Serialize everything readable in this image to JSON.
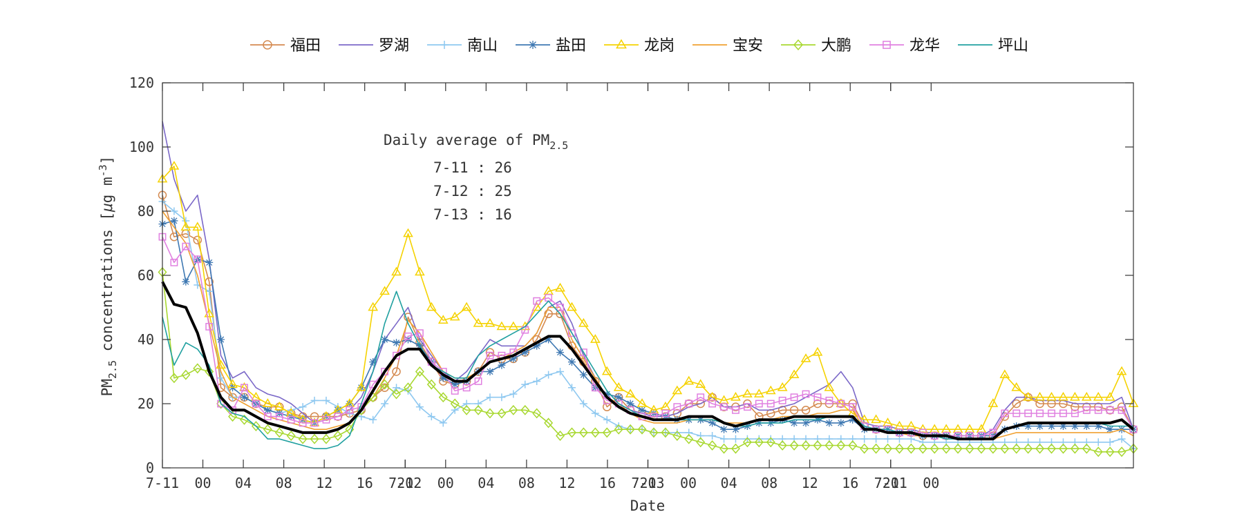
{
  "chart_data": {
    "type": "line",
    "x_tick_labels": [
      "7-11",
      "00",
      "04",
      "08",
      "12",
      "16",
      "20",
      "7-12",
      "00",
      "04",
      "08",
      "12",
      "16",
      "20",
      "7-13",
      "00",
      "04",
      "08",
      "12",
      "16",
      "20",
      "7-11",
      "00"
    ],
    "ylabel_main": "PM",
    "ylabel_sub": "2.5",
    "ylabel_tail": " concentrations [",
    "ylabel_mu": "μ",
    "ylabel_unit": "g m",
    "ylabel_exp": "-3",
    "ylabel_close": "]",
    "xlabel": "Date",
    "ylim": [
      0,
      120
    ],
    "y_ticks": [
      0,
      20,
      40,
      60,
      80,
      100,
      120
    ],
    "grid": false,
    "legend_position": "top",
    "annotation": {
      "title_prefix": "Daily average of PM",
      "title_sub": "2.5",
      "lines": [
        "7-11 : 26",
        "7-12 : 25",
        "7-13 : 16"
      ]
    },
    "series": [
      {
        "name": "福田",
        "color": "#D48A50",
        "marker": "circle",
        "values": [
          85,
          72,
          73,
          71,
          58,
          25,
          22,
          22,
          20,
          19,
          19,
          17,
          16,
          16,
          16,
          16,
          17,
          18,
          22,
          25,
          30,
          47,
          39,
          33,
          27,
          26,
          27,
          30,
          36,
          34,
          34,
          36,
          40,
          48,
          48,
          38,
          33,
          27,
          19,
          22,
          18,
          17,
          17,
          16,
          17,
          20,
          20,
          22,
          19,
          19,
          20,
          16,
          17,
          18,
          18,
          18,
          20,
          20,
          20,
          20,
          13,
          12,
          12,
          11,
          11,
          10,
          10,
          10,
          10,
          10,
          10,
          10,
          16,
          20,
          22,
          20,
          20,
          20,
          19,
          19,
          19,
          18,
          19,
          12
        ]
      },
      {
        "name": "罗湖",
        "color": "#7B68C8",
        "marker": "none",
        "values": [
          108,
          90,
          80,
          85,
          65,
          35,
          28,
          30,
          25,
          23,
          22,
          20,
          17,
          14,
          15,
          16,
          18,
          22,
          30,
          40,
          45,
          50,
          40,
          35,
          30,
          27,
          30,
          35,
          40,
          38,
          38,
          38,
          42,
          50,
          52,
          45,
          35,
          28,
          22,
          20,
          18,
          17,
          16,
          16,
          17,
          19,
          20,
          22,
          19,
          19,
          20,
          18,
          18,
          19,
          20,
          22,
          24,
          26,
          30,
          25,
          14,
          13,
          13,
          12,
          12,
          11,
          11,
          10,
          10,
          10,
          10,
          12,
          18,
          22,
          22,
          21,
          21,
          21,
          20,
          20,
          20,
          20,
          22,
          12
        ]
      },
      {
        "name": "南山",
        "color": "#8EC8F0",
        "marker": "plus",
        "values": [
          83,
          80,
          77,
          57,
          55,
          28,
          22,
          22,
          20,
          18,
          17,
          18,
          19,
          21,
          21,
          19,
          17,
          16,
          15,
          20,
          25,
          24,
          19,
          16,
          14,
          18,
          20,
          20,
          22,
          22,
          23,
          26,
          27,
          29,
          30,
          25,
          20,
          17,
          15,
          13,
          12,
          12,
          11,
          11,
          11,
          11,
          10,
          10,
          9,
          9,
          9,
          9,
          9,
          9,
          9,
          9,
          9,
          9,
          9,
          9,
          9,
          9,
          9,
          9,
          9,
          8,
          8,
          8,
          8,
          8,
          8,
          8,
          8,
          8,
          8,
          8,
          8,
          8,
          8,
          8,
          8,
          8,
          9,
          6
        ]
      },
      {
        "name": "盐田",
        "color": "#3E78B2",
        "marker": "asterisk",
        "values": [
          76,
          77,
          58,
          65,
          64,
          40,
          25,
          22,
          20,
          18,
          17,
          16,
          15,
          14,
          16,
          18,
          20,
          25,
          33,
          40,
          39,
          40,
          38,
          33,
          28,
          26,
          27,
          30,
          30,
          32,
          34,
          36,
          38,
          40,
          36,
          33,
          29,
          25,
          23,
          22,
          20,
          18,
          17,
          16,
          15,
          15,
          15,
          14,
          12,
          12,
          13,
          14,
          14,
          15,
          14,
          14,
          15,
          14,
          14,
          15,
          12,
          12,
          12,
          11,
          11,
          10,
          10,
          10,
          10,
          10,
          10,
          10,
          12,
          13,
          13,
          13,
          13,
          13,
          13,
          13,
          13,
          12,
          12,
          12
        ]
      },
      {
        "name": "龙岗",
        "color": "#F5D200",
        "marker": "triangle",
        "values": [
          90,
          94,
          75,
          75,
          48,
          32,
          26,
          25,
          22,
          20,
          19,
          17,
          15,
          14,
          16,
          18,
          20,
          25,
          50,
          55,
          61,
          73,
          61,
          50,
          46,
          47,
          50,
          45,
          45,
          44,
          44,
          44,
          50,
          55,
          56,
          50,
          45,
          40,
          30,
          25,
          23,
          20,
          18,
          19,
          24,
          27,
          26,
          22,
          21,
          22,
          23,
          23,
          24,
          25,
          29,
          34,
          36,
          25,
          20,
          17,
          15,
          15,
          14,
          13,
          13,
          12,
          12,
          12,
          12,
          12,
          12,
          20,
          29,
          25,
          22,
          22,
          22,
          22,
          22,
          22,
          22,
          22,
          30,
          20
        ]
      },
      {
        "name": "宝安",
        "color": "#F0A030",
        "marker": "none",
        "values": [
          80,
          75,
          70,
          60,
          45,
          30,
          22,
          20,
          18,
          16,
          15,
          14,
          13,
          12,
          12,
          13,
          14,
          18,
          22,
          28,
          35,
          46,
          42,
          36,
          30,
          28,
          28,
          30,
          33,
          34,
          36,
          38,
          42,
          50,
          50,
          40,
          34,
          28,
          22,
          20,
          17,
          15,
          14,
          14,
          14,
          15,
          15,
          15,
          14,
          14,
          14,
          15,
          15,
          16,
          16,
          16,
          17,
          17,
          18,
          18,
          12,
          12,
          11,
          11,
          10,
          10,
          10,
          9,
          9,
          9,
          9,
          9,
          10,
          11,
          11,
          11,
          11,
          11,
          11,
          11,
          11,
          11,
          12,
          10
        ]
      },
      {
        "name": "大鹏",
        "color": "#A8D830",
        "marker": "diamond",
        "values": [
          61,
          28,
          29,
          31,
          30,
          20,
          16,
          15,
          13,
          12,
          11,
          10,
          9,
          9,
          9,
          10,
          12,
          18,
          22,
          26,
          23,
          25,
          30,
          26,
          22,
          20,
          18,
          18,
          17,
          17,
          18,
          18,
          17,
          14,
          10,
          11,
          11,
          11,
          11,
          12,
          12,
          12,
          11,
          11,
          10,
          9,
          8,
          7,
          6,
          6,
          8,
          8,
          8,
          7,
          7,
          7,
          7,
          7,
          7,
          7,
          6,
          6,
          6,
          6,
          6,
          6,
          6,
          6,
          6,
          6,
          6,
          6,
          6,
          6,
          6,
          6,
          6,
          6,
          6,
          6,
          5,
          5,
          5,
          6
        ]
      },
      {
        "name": "龙华",
        "color": "#E080E0",
        "marker": "square",
        "values": [
          72,
          64,
          69,
          65,
          44,
          20,
          18,
          25,
          20,
          16,
          16,
          15,
          14,
          14,
          15,
          16,
          18,
          19,
          26,
          30,
          35,
          41,
          42,
          33,
          30,
          24,
          25,
          27,
          35,
          35,
          36,
          43,
          52,
          53,
          50,
          42,
          36,
          25,
          21,
          20,
          18,
          16,
          16,
          17,
          19,
          20,
          22,
          20,
          19,
          18,
          19,
          20,
          20,
          21,
          22,
          23,
          22,
          21,
          20,
          19,
          13,
          12,
          12,
          11,
          11,
          11,
          10,
          10,
          10,
          10,
          10,
          11,
          17,
          17,
          17,
          17,
          17,
          17,
          17,
          18,
          18,
          18,
          18,
          12
        ]
      },
      {
        "name": "坪山",
        "color": "#20A0A0",
        "marker": "none",
        "values": [
          47,
          32,
          39,
          37,
          32,
          20,
          17,
          16,
          13,
          9,
          9,
          8,
          7,
          6,
          6,
          7,
          10,
          20,
          30,
          45,
          55,
          45,
          38,
          32,
          30,
          28,
          28,
          35,
          38,
          40,
          42,
          44,
          48,
          52,
          48,
          42,
          36,
          30,
          24,
          20,
          18,
          16,
          15,
          15,
          15,
          15,
          15,
          15,
          14,
          13,
          13,
          14,
          14,
          14,
          15,
          15,
          15,
          16,
          16,
          16,
          13,
          12,
          12,
          11,
          11,
          10,
          10,
          9,
          9,
          9,
          9,
          9,
          12,
          13,
          14,
          14,
          14,
          14,
          14,
          14,
          14,
          13,
          13,
          13
        ]
      },
      {
        "name": "",
        "color": "#000000",
        "marker": "none",
        "bold": true,
        "values": [
          58,
          51,
          50,
          42,
          30,
          22,
          18,
          18,
          16,
          14,
          13,
          12,
          11,
          11,
          11,
          12,
          14,
          18,
          24,
          30,
          35,
          37,
          37,
          32,
          29,
          27,
          27,
          30,
          33,
          34,
          35,
          37,
          39,
          41,
          41,
          37,
          32,
          27,
          22,
          19,
          17,
          16,
          15,
          15,
          15,
          16,
          16,
          16,
          14,
          13,
          14,
          15,
          15,
          15,
          16,
          16,
          16,
          16,
          16,
          16,
          12,
          12,
          11,
          11,
          11,
          10,
          10,
          10,
          9,
          9,
          9,
          9,
          12,
          13,
          14,
          14,
          14,
          14,
          14,
          14,
          14,
          14,
          15,
          12
        ]
      }
    ]
  }
}
